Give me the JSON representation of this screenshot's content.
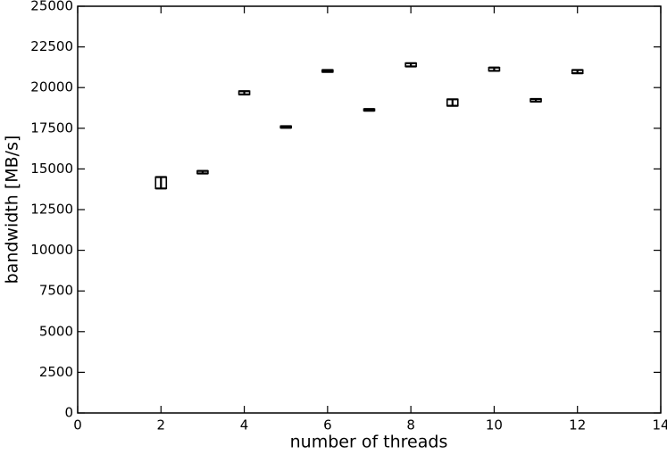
{
  "chart_data": {
    "type": "errorbar",
    "x_label": "number of threads",
    "y_label": "bandwidth [MB/s]",
    "xlim": [
      0,
      14
    ],
    "xticks": [
      0,
      2,
      4,
      6,
      8,
      10,
      12,
      14
    ],
    "ylim": [
      0,
      25000
    ],
    "yticks": [
      0,
      2500,
      5000,
      7500,
      10000,
      12500,
      15000,
      17500,
      20000,
      22500,
      25000
    ],
    "color": "#000000",
    "x": [
      2,
      3,
      4,
      5,
      6,
      7,
      8,
      9,
      10,
      11,
      12
    ],
    "values": [
      14150,
      14800,
      19680,
      17580,
      21020,
      18630,
      21400,
      19080,
      21130,
      19220,
      20980
    ],
    "errors": [
      350,
      80,
      100,
      50,
      60,
      50,
      100,
      200,
      100,
      80,
      100
    ]
  }
}
